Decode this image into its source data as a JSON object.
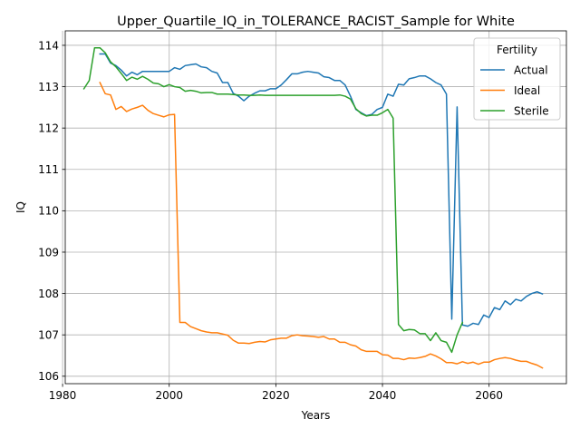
{
  "chart_data": {
    "type": "line",
    "title": "Upper_Quartile_IQ_in_TOLERANCE_RACIST_Sample for White",
    "xlabel": "Years",
    "ylabel": "IQ",
    "xlim": [
      1980.5,
      2074.5
    ],
    "ylim": [
      105.82,
      114.35
    ],
    "xticks": [
      1980,
      2000,
      2020,
      2040,
      2060
    ],
    "yticks": [
      106,
      107,
      108,
      109,
      110,
      111,
      112,
      113,
      114
    ],
    "grid": true,
    "legend": {
      "title": "Fertility",
      "placement": "top-right"
    },
    "series": [
      {
        "name": "Actual",
        "color": "#1f77b4",
        "points": [
          [
            1987,
            113.79
          ],
          [
            1988,
            113.79
          ],
          [
            1989,
            113.57
          ],
          [
            1990,
            113.51
          ],
          [
            1991,
            113.4
          ],
          [
            1992,
            113.26
          ],
          [
            1993,
            113.35
          ],
          [
            1994,
            113.29
          ],
          [
            1995,
            113.37
          ],
          [
            1996,
            113.37
          ],
          [
            1997,
            113.37
          ],
          [
            1998,
            113.37
          ],
          [
            1999,
            113.37
          ],
          [
            2000,
            113.37
          ],
          [
            2001,
            113.46
          ],
          [
            2002,
            113.42
          ],
          [
            2003,
            113.51
          ],
          [
            2004,
            113.53
          ],
          [
            2005,
            113.55
          ],
          [
            2006,
            113.48
          ],
          [
            2007,
            113.46
          ],
          [
            2008,
            113.37
          ],
          [
            2009,
            113.33
          ],
          [
            2010,
            113.1
          ],
          [
            2011,
            113.1
          ],
          [
            2012,
            112.84
          ],
          [
            2013,
            112.77
          ],
          [
            2014,
            112.66
          ],
          [
            2015,
            112.77
          ],
          [
            2016,
            112.84
          ],
          [
            2017,
            112.9
          ],
          [
            2018,
            112.9
          ],
          [
            2019,
            112.95
          ],
          [
            2020,
            112.95
          ],
          [
            2021,
            113.04
          ],
          [
            2022,
            113.17
          ],
          [
            2023,
            113.31
          ],
          [
            2024,
            113.31
          ],
          [
            2025,
            113.35
          ],
          [
            2026,
            113.37
          ],
          [
            2027,
            113.35
          ],
          [
            2028,
            113.33
          ],
          [
            2029,
            113.24
          ],
          [
            2030,
            113.22
          ],
          [
            2031,
            113.15
          ],
          [
            2032,
            113.15
          ],
          [
            2033,
            113.04
          ],
          [
            2034,
            112.77
          ],
          [
            2035,
            112.45
          ],
          [
            2036,
            112.37
          ],
          [
            2037,
            112.3
          ],
          [
            2038,
            112.33
          ],
          [
            2039,
            112.45
          ],
          [
            2040,
            112.5
          ],
          [
            2041,
            112.82
          ],
          [
            2042,
            112.77
          ],
          [
            2043,
            113.06
          ],
          [
            2044,
            113.04
          ],
          [
            2045,
            113.19
          ],
          [
            2046,
            113.22
          ],
          [
            2047,
            113.26
          ],
          [
            2048,
            113.26
          ],
          [
            2049,
            113.19
          ],
          [
            2050,
            113.1
          ],
          [
            2051,
            113.04
          ],
          [
            2052,
            112.82
          ],
          [
            2053,
            107.38
          ],
          [
            2054,
            112.51
          ],
          [
            2055,
            107.24
          ],
          [
            2056,
            107.21
          ],
          [
            2057,
            107.28
          ],
          [
            2058,
            107.25
          ],
          [
            2059,
            107.48
          ],
          [
            2060,
            107.42
          ],
          [
            2061,
            107.66
          ],
          [
            2062,
            107.61
          ],
          [
            2063,
            107.82
          ],
          [
            2064,
            107.73
          ],
          [
            2065,
            107.86
          ],
          [
            2066,
            107.82
          ],
          [
            2067,
            107.93
          ],
          [
            2068,
            108.0
          ],
          [
            2069,
            108.04
          ],
          [
            2070,
            107.99
          ]
        ]
      },
      {
        "name": "Ideal",
        "color": "#ff7f0e",
        "points": [
          [
            1987,
            113.1
          ],
          [
            1988,
            112.83
          ],
          [
            1989,
            112.8
          ],
          [
            1990,
            112.45
          ],
          [
            1991,
            112.52
          ],
          [
            1992,
            112.4
          ],
          [
            1993,
            112.46
          ],
          [
            1994,
            112.5
          ],
          [
            1995,
            112.55
          ],
          [
            1996,
            112.43
          ],
          [
            1997,
            112.35
          ],
          [
            1998,
            112.31
          ],
          [
            1999,
            112.27
          ],
          [
            2000,
            112.32
          ],
          [
            2001,
            112.33
          ],
          [
            2002,
            107.3
          ],
          [
            2003,
            107.3
          ],
          [
            2004,
            107.2
          ],
          [
            2005,
            107.15
          ],
          [
            2006,
            107.1
          ],
          [
            2007,
            107.07
          ],
          [
            2008,
            107.05
          ],
          [
            2009,
            107.05
          ],
          [
            2010,
            107.02
          ],
          [
            2011,
            106.99
          ],
          [
            2012,
            106.87
          ],
          [
            2013,
            106.8
          ],
          [
            2014,
            106.8
          ],
          [
            2015,
            106.79
          ],
          [
            2016,
            106.82
          ],
          [
            2017,
            106.84
          ],
          [
            2018,
            106.83
          ],
          [
            2019,
            106.88
          ],
          [
            2020,
            106.9
          ],
          [
            2021,
            106.92
          ],
          [
            2022,
            106.92
          ],
          [
            2023,
            106.98
          ],
          [
            2024,
            107.0
          ],
          [
            2025,
            106.98
          ],
          [
            2026,
            106.97
          ],
          [
            2027,
            106.96
          ],
          [
            2028,
            106.94
          ],
          [
            2029,
            106.96
          ],
          [
            2030,
            106.9
          ],
          [
            2031,
            106.9
          ],
          [
            2032,
            106.82
          ],
          [
            2033,
            106.82
          ],
          [
            2034,
            106.76
          ],
          [
            2035,
            106.73
          ],
          [
            2036,
            106.64
          ],
          [
            2037,
            106.6
          ],
          [
            2038,
            106.6
          ],
          [
            2039,
            106.6
          ],
          [
            2040,
            106.52
          ],
          [
            2041,
            106.51
          ],
          [
            2042,
            106.43
          ],
          [
            2043,
            106.43
          ],
          [
            2044,
            106.4
          ],
          [
            2045,
            106.44
          ],
          [
            2046,
            106.43
          ],
          [
            2047,
            106.45
          ],
          [
            2048,
            106.48
          ],
          [
            2049,
            106.54
          ],
          [
            2050,
            106.49
          ],
          [
            2051,
            106.42
          ],
          [
            2052,
            106.33
          ],
          [
            2053,
            106.33
          ],
          [
            2054,
            106.3
          ],
          [
            2055,
            106.35
          ],
          [
            2056,
            106.31
          ],
          [
            2057,
            106.34
          ],
          [
            2058,
            106.29
          ],
          [
            2059,
            106.34
          ],
          [
            2060,
            106.34
          ],
          [
            2061,
            106.4
          ],
          [
            2062,
            106.43
          ],
          [
            2063,
            106.45
          ],
          [
            2064,
            106.43
          ],
          [
            2065,
            106.39
          ],
          [
            2066,
            106.36
          ],
          [
            2067,
            106.36
          ],
          [
            2068,
            106.31
          ],
          [
            2069,
            106.27
          ],
          [
            2070,
            106.2
          ]
        ]
      },
      {
        "name": "Sterile",
        "color": "#2ca02c",
        "points": [
          [
            1984,
            112.95
          ],
          [
            1985,
            113.15
          ],
          [
            1986,
            113.94
          ],
          [
            1987,
            113.94
          ],
          [
            1988,
            113.82
          ],
          [
            1989,
            113.6
          ],
          [
            1990,
            113.48
          ],
          [
            1991,
            113.32
          ],
          [
            1992,
            113.15
          ],
          [
            1993,
            113.23
          ],
          [
            1994,
            113.18
          ],
          [
            1995,
            113.25
          ],
          [
            1996,
            113.18
          ],
          [
            1997,
            113.09
          ],
          [
            1998,
            113.07
          ],
          [
            1999,
            113.0
          ],
          [
            2000,
            113.05
          ],
          [
            2001,
            113.0
          ],
          [
            2002,
            112.98
          ],
          [
            2003,
            112.89
          ],
          [
            2004,
            112.91
          ],
          [
            2005,
            112.89
          ],
          [
            2006,
            112.85
          ],
          [
            2007,
            112.86
          ],
          [
            2008,
            112.86
          ],
          [
            2009,
            112.82
          ],
          [
            2010,
            112.82
          ],
          [
            2011,
            112.82
          ],
          [
            2012,
            112.81
          ],
          [
            2013,
            112.8
          ],
          [
            2014,
            112.8
          ],
          [
            2015,
            112.79
          ],
          [
            2016,
            112.79
          ],
          [
            2017,
            112.8
          ],
          [
            2018,
            112.79
          ],
          [
            2019,
            112.79
          ],
          [
            2020,
            112.79
          ],
          [
            2021,
            112.79
          ],
          [
            2022,
            112.79
          ],
          [
            2023,
            112.79
          ],
          [
            2024,
            112.79
          ],
          [
            2025,
            112.79
          ],
          [
            2026,
            112.79
          ],
          [
            2027,
            112.79
          ],
          [
            2028,
            112.79
          ],
          [
            2029,
            112.79
          ],
          [
            2030,
            112.79
          ],
          [
            2031,
            112.79
          ],
          [
            2032,
            112.8
          ],
          [
            2033,
            112.77
          ],
          [
            2034,
            112.7
          ],
          [
            2035,
            112.47
          ],
          [
            2036,
            112.35
          ],
          [
            2037,
            112.29
          ],
          [
            2038,
            112.31
          ],
          [
            2039,
            112.31
          ],
          [
            2040,
            112.37
          ],
          [
            2041,
            112.45
          ],
          [
            2042,
            112.24
          ],
          [
            2043,
            107.25
          ],
          [
            2044,
            107.1
          ],
          [
            2045,
            107.13
          ],
          [
            2046,
            107.12
          ],
          [
            2047,
            107.03
          ],
          [
            2048,
            107.03
          ],
          [
            2049,
            106.86
          ],
          [
            2050,
            107.05
          ],
          [
            2051,
            106.86
          ],
          [
            2052,
            106.82
          ],
          [
            2053,
            106.58
          ],
          [
            2054,
            107.0
          ],
          [
            2055,
            107.3
          ]
        ]
      }
    ]
  }
}
